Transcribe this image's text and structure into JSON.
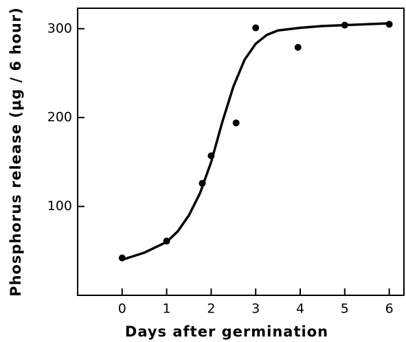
{
  "chart_data": {
    "type": "scatter",
    "xlabel": "Days   after   germination",
    "ylabel": "Phosphorus release (μg / 6 hour)",
    "x": [
      0,
      1,
      1.8,
      2.0,
      2.56,
      3.0,
      3.95,
      5.0,
      6.0
    ],
    "values": [
      42,
      61,
      126,
      157,
      194,
      301,
      279,
      304,
      305
    ],
    "fit_x": [
      0,
      0.5,
      1,
      1.25,
      1.5,
      1.75,
      2,
      2.25,
      2.5,
      2.75,
      3,
      3.25,
      3.5,
      4,
      4.5,
      5,
      5.5,
      6
    ],
    "fit_values": [
      40,
      48,
      60,
      72,
      90,
      115,
      150,
      195,
      235,
      265,
      283,
      293,
      298,
      301,
      303,
      304,
      305,
      306
    ],
    "color": "#000000",
    "xlim": [
      -1,
      6.33
    ],
    "ylim": [
      0,
      323
    ],
    "xticks": [
      0,
      1,
      2,
      3,
      4,
      5,
      6
    ],
    "yticks": [
      100,
      200,
      300
    ]
  }
}
